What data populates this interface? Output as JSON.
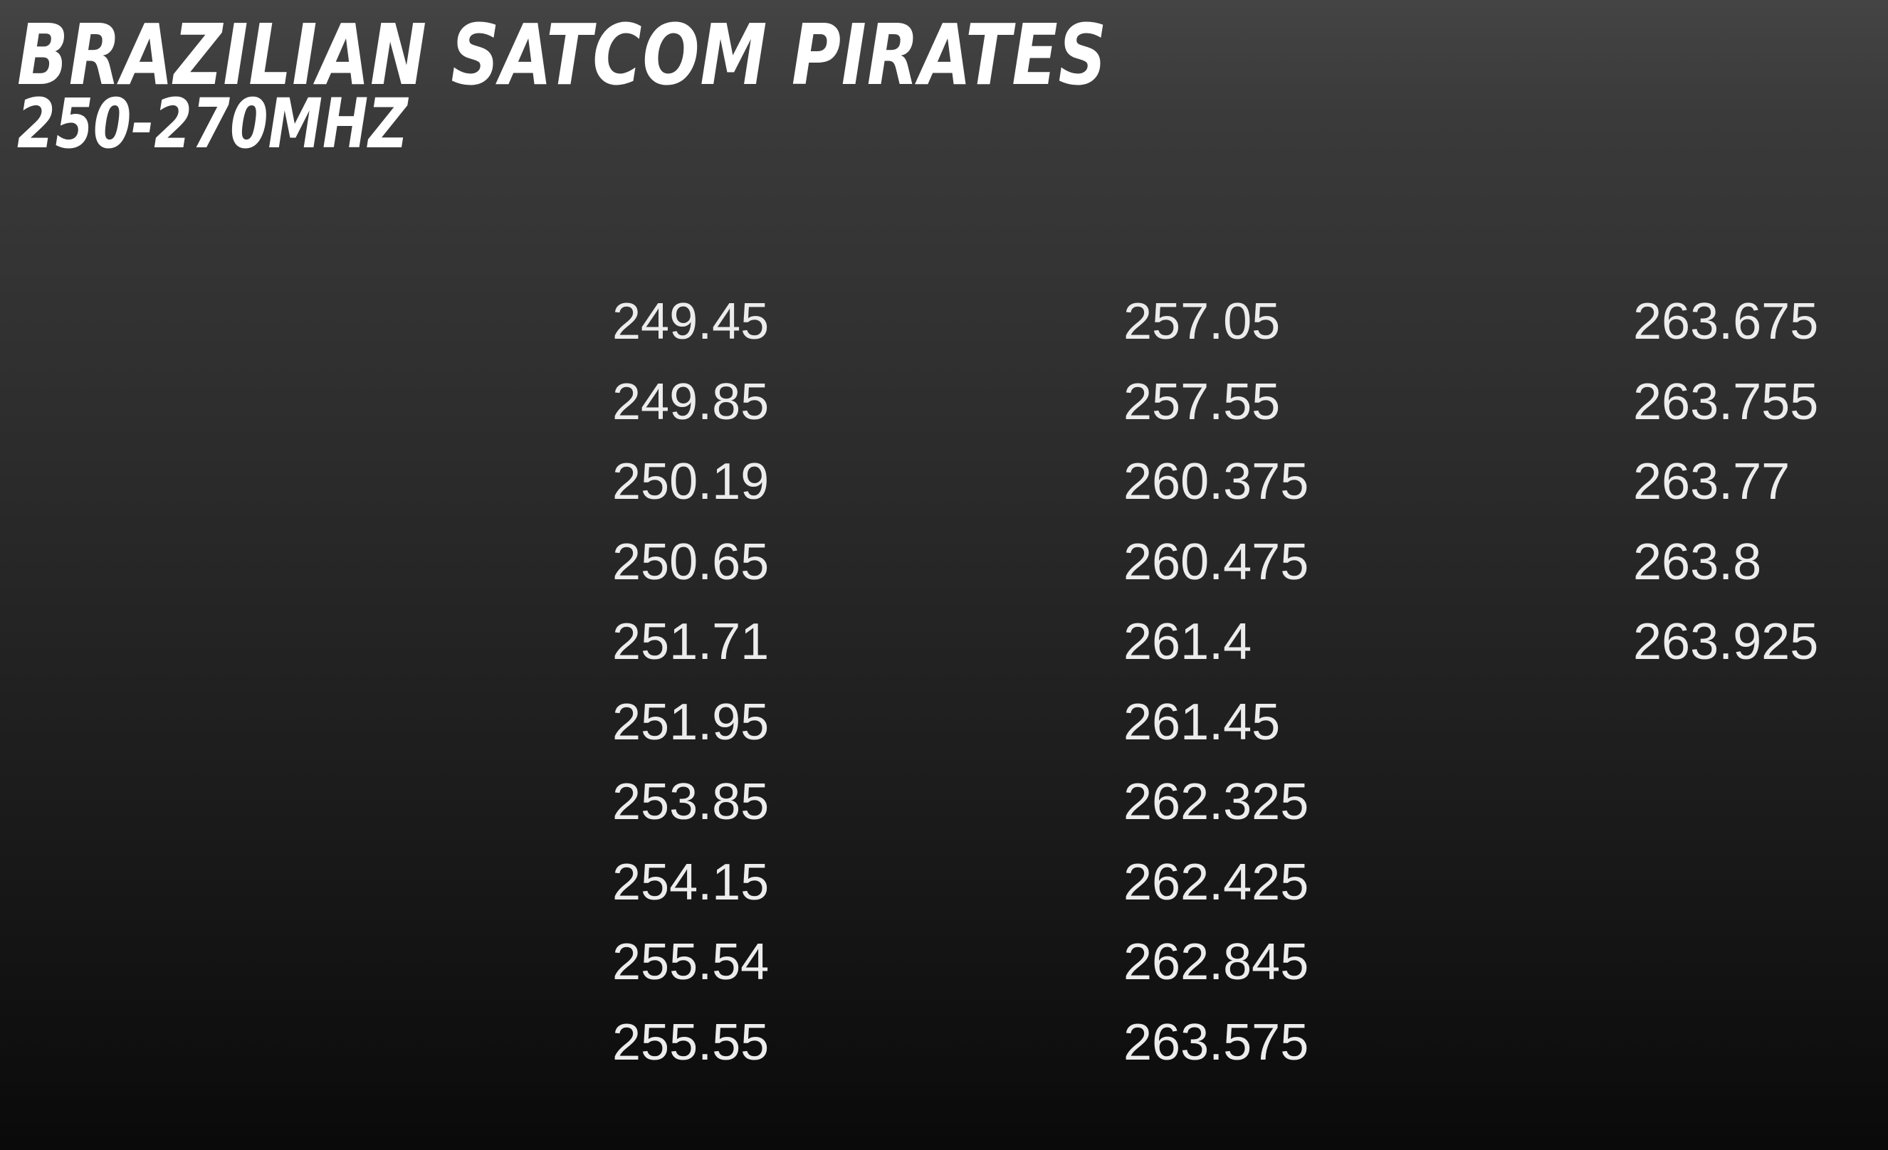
{
  "slide": {
    "title": "BRAZILIAN SATCOM PIRATES",
    "subtitle": "250-270MHZ",
    "frequency_columns": [
      [
        "249.45",
        "249.85",
        "250.19",
        "250.65",
        "251.71",
        "251.95",
        "253.85",
        "254.15",
        "255.54",
        "255.55"
      ],
      [
        "257.05",
        "257.55",
        "260.375",
        "260.475",
        "261.4",
        "261.45",
        "262.325",
        "262.425",
        "262.845",
        "263.575"
      ],
      [
        "263.675",
        "263.755",
        "263.77",
        "263.8",
        "263.925"
      ]
    ]
  }
}
